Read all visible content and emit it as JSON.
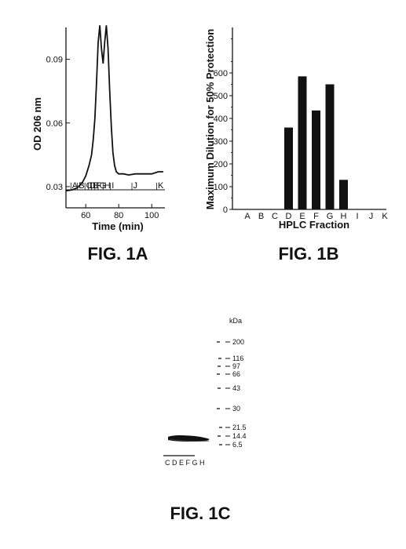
{
  "chart_data": [
    {
      "type": "line",
      "figure_label": "FIG. 1A",
      "xlabel": "Time (min)",
      "ylabel": "OD 206 nm",
      "xlim": [
        48,
        108
      ],
      "ylim": [
        0.02,
        0.105
      ],
      "x_ticks": [
        "60",
        "80",
        "100"
      ],
      "y_ticks": [
        "0.03",
        "0.06",
        "0.09"
      ],
      "x": [
        48,
        52,
        55,
        58,
        60,
        62,
        63.5,
        64.5,
        65.5,
        66.5,
        67.5,
        68.5,
        69.5,
        70.5,
        71.5,
        72.5,
        73.5,
        74.5,
        75.5,
        76.5,
        77.5,
        78.5,
        80,
        83,
        86,
        90,
        95,
        100,
        104,
        107
      ],
      "y": [
        0.028,
        0.0285,
        0.0295,
        0.032,
        0.035,
        0.04,
        0.045,
        0.052,
        0.062,
        0.078,
        0.098,
        0.106,
        0.095,
        0.088,
        0.098,
        0.106,
        0.095,
        0.075,
        0.058,
        0.046,
        0.04,
        0.037,
        0.036,
        0.036,
        0.0355,
        0.036,
        0.036,
        0.036,
        0.037,
        0.037
      ],
      "fraction_labels": [
        "A",
        "B",
        "C",
        "D",
        "E",
        "F",
        "G",
        "H",
        "I",
        "J",
        "K"
      ],
      "fraction_positions": [
        51,
        55,
        59.5,
        61.5,
        63.5,
        65.5,
        67.5,
        70.5,
        75,
        88,
        103
      ]
    },
    {
      "type": "bar",
      "figure_label": "FIG. 1B",
      "xlabel": "HPLC Fraction",
      "ylabel": "Maximum Dilution for 50% Protection",
      "categories": [
        "A",
        "B",
        "C",
        "D",
        "E",
        "F",
        "G",
        "H",
        "I",
        "J",
        "K"
      ],
      "values": [
        0,
        0,
        0,
        360,
        585,
        435,
        550,
        130,
        0,
        0,
        0
      ],
      "ylim": [
        0,
        800
      ],
      "y_ticks": [
        "0",
        "100",
        "200",
        "300",
        "400",
        "500",
        "600"
      ]
    },
    {
      "type": "other",
      "figure_label": "FIG. 1C",
      "unit_label": "kDa",
      "markers": [
        "200",
        "116",
        "97",
        "66",
        "43",
        "30",
        "21.5",
        "14.4",
        "6.5"
      ],
      "lane_labels": "C D E F G H"
    }
  ]
}
